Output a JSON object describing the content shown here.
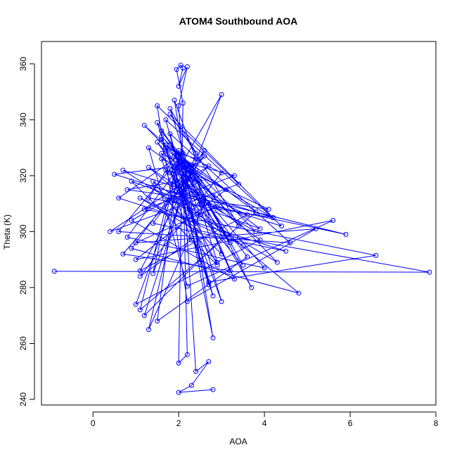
{
  "chart_data": {
    "type": "line",
    "title": "ATOM4 Southbound AOA",
    "xlabel": "AOA",
    "ylabel": "Theta (K)",
    "xlim": [
      -1.2,
      8.0
    ],
    "ylim": [
      238,
      368
    ],
    "x_ticks": [
      0,
      2,
      4,
      6,
      8
    ],
    "y_ticks": [
      240,
      260,
      280,
      300,
      320,
      340,
      360
    ],
    "markers": "open-circle",
    "grid": false,
    "legend": "none",
    "color": "#0000ff",
    "series": [
      {
        "x": [
          -0.9,
          7.85,
          2.4,
          1.1,
          3.5,
          0.7,
          4.2,
          1.6,
          2.9,
          0.9,
          3.9,
          1.3,
          2.2,
          5.6,
          1.0,
          3.1,
          2.0,
          0.6,
          4.6,
          1.8,
          2.7,
          6.6,
          1.2,
          3.3,
          2.1,
          0.8,
          4.0,
          1.5,
          2.5,
          5.9,
          1.4,
          3.0,
          2.3,
          0.5,
          4.4,
          1.7,
          2.8,
          1.9,
          3.6,
          1.1,
          2.6,
          0.9,
          4.8,
          1.3,
          2.2,
          3.8,
          1.6,
          2.4,
          0.7,
          3.2,
          2.0,
          1.2,
          4.3,
          1.9,
          2.7,
          0.4,
          3.4,
          1.5,
          2.2,
          5.2,
          1.0,
          2.9,
          1.8,
          3.7,
          2.4,
          0.8,
          4.1,
          1.6,
          2.3,
          1.1,
          3.0,
          2.1,
          0.6,
          4.5,
          1.4,
          2.6,
          1.9,
          3.5,
          2.2,
          1.0,
          3.9,
          1.7,
          2.5,
          0.9,
          3.3,
          2.0,
          1.3,
          4.2,
          1.8,
          2.4,
          1.2,
          3.1,
          2.3,
          1.6,
          2.8,
          2.0,
          1.5,
          3.6,
          2.2,
          1.9,
          2.4,
          1.7,
          3.0,
          2.1,
          2.5,
          1.4,
          2.9,
          1.8,
          3.4,
          2.2,
          1.3,
          2.6,
          1.9,
          3.2,
          2.0,
          1.1,
          3.8,
          1.7,
          2.3,
          1.5,
          2.7,
          2.0,
          1.4,
          3.0,
          2.1,
          1.8,
          2.4,
          1.6,
          2.2,
          1.9,
          2.5,
          2.1,
          2.8,
          2.0,
          2.3,
          1.9,
          2.1,
          2.2,
          2.0,
          2.1,
          1.95,
          2.05,
          2.1,
          2.0,
          2.2,
          2.0,
          2.4,
          2.7,
          2.3,
          2.0,
          2.8
        ],
        "y": [
          285.8,
          285.5,
          300.5,
          312.0,
          295.0,
          322.0,
          305.0,
          328.0,
          288.0,
          318.0,
          301.0,
          330.0,
          280.5,
          304.0,
          290.0,
          315.0,
          326.0,
          300.0,
          296.0,
          335.0,
          282.0,
          291.5,
          308.0,
          320.0,
          325.0,
          298.0,
          287.0,
          332.0,
          310.0,
          299.0,
          316.0,
          292.0,
          324.0,
          320.5,
          302.0,
          340.0,
          277.0,
          318.0,
          306.0,
          286.0,
          329.0,
          294.0,
          278.0,
          323.0,
          314.0,
          300.0,
          334.0,
          322.0,
          292.0,
          286.0,
          327.0,
          338.0,
          289.0,
          311.0,
          323.5,
          300.0,
          317.0,
          345.0,
          275.0,
          301.0,
          296.0,
          309.0,
          331.0,
          280.0,
          319.0,
          315.0,
          308.0,
          326.0,
          297.0,
          284.0,
          321.0,
          328.0,
          312.0,
          293.0,
          303.0,
          327.0,
          317.0,
          288.0,
          324.0,
          274.0,
          297.0,
          322.0,
          318.0,
          304.0,
          283.0,
          329.0,
          312.0,
          305.0,
          342.0,
          328.0,
          270.0,
          299.0,
          321.0,
          336.0,
          313.0,
          325.0,
          268.0,
          291.0,
          319.0,
          347.0,
          326.0,
          330.0,
          275.0,
          322.0,
          306.0,
          318.0,
          289.0,
          344.0,
          302.0,
          324.0,
          265.0,
          310.0,
          323.0,
          296.0,
          327.0,
          272.0,
          307.0,
          331.0,
          320.0,
          339.0,
          281.0,
          326.0,
          285.0,
          349.0,
          325.0,
          321.0,
          303.0,
          333.0,
          316.0,
          322.0,
          289.0,
          328.0,
          262.0,
          324.0,
          320.0,
          327.0,
          323.0,
          256.0,
          253.0,
          346.0,
          358.0,
          359.5,
          358.5,
          352.0,
          359.0,
          345.0,
          250.0,
          253.5,
          245.0,
          242.5,
          243.5
        ]
      }
    ]
  }
}
